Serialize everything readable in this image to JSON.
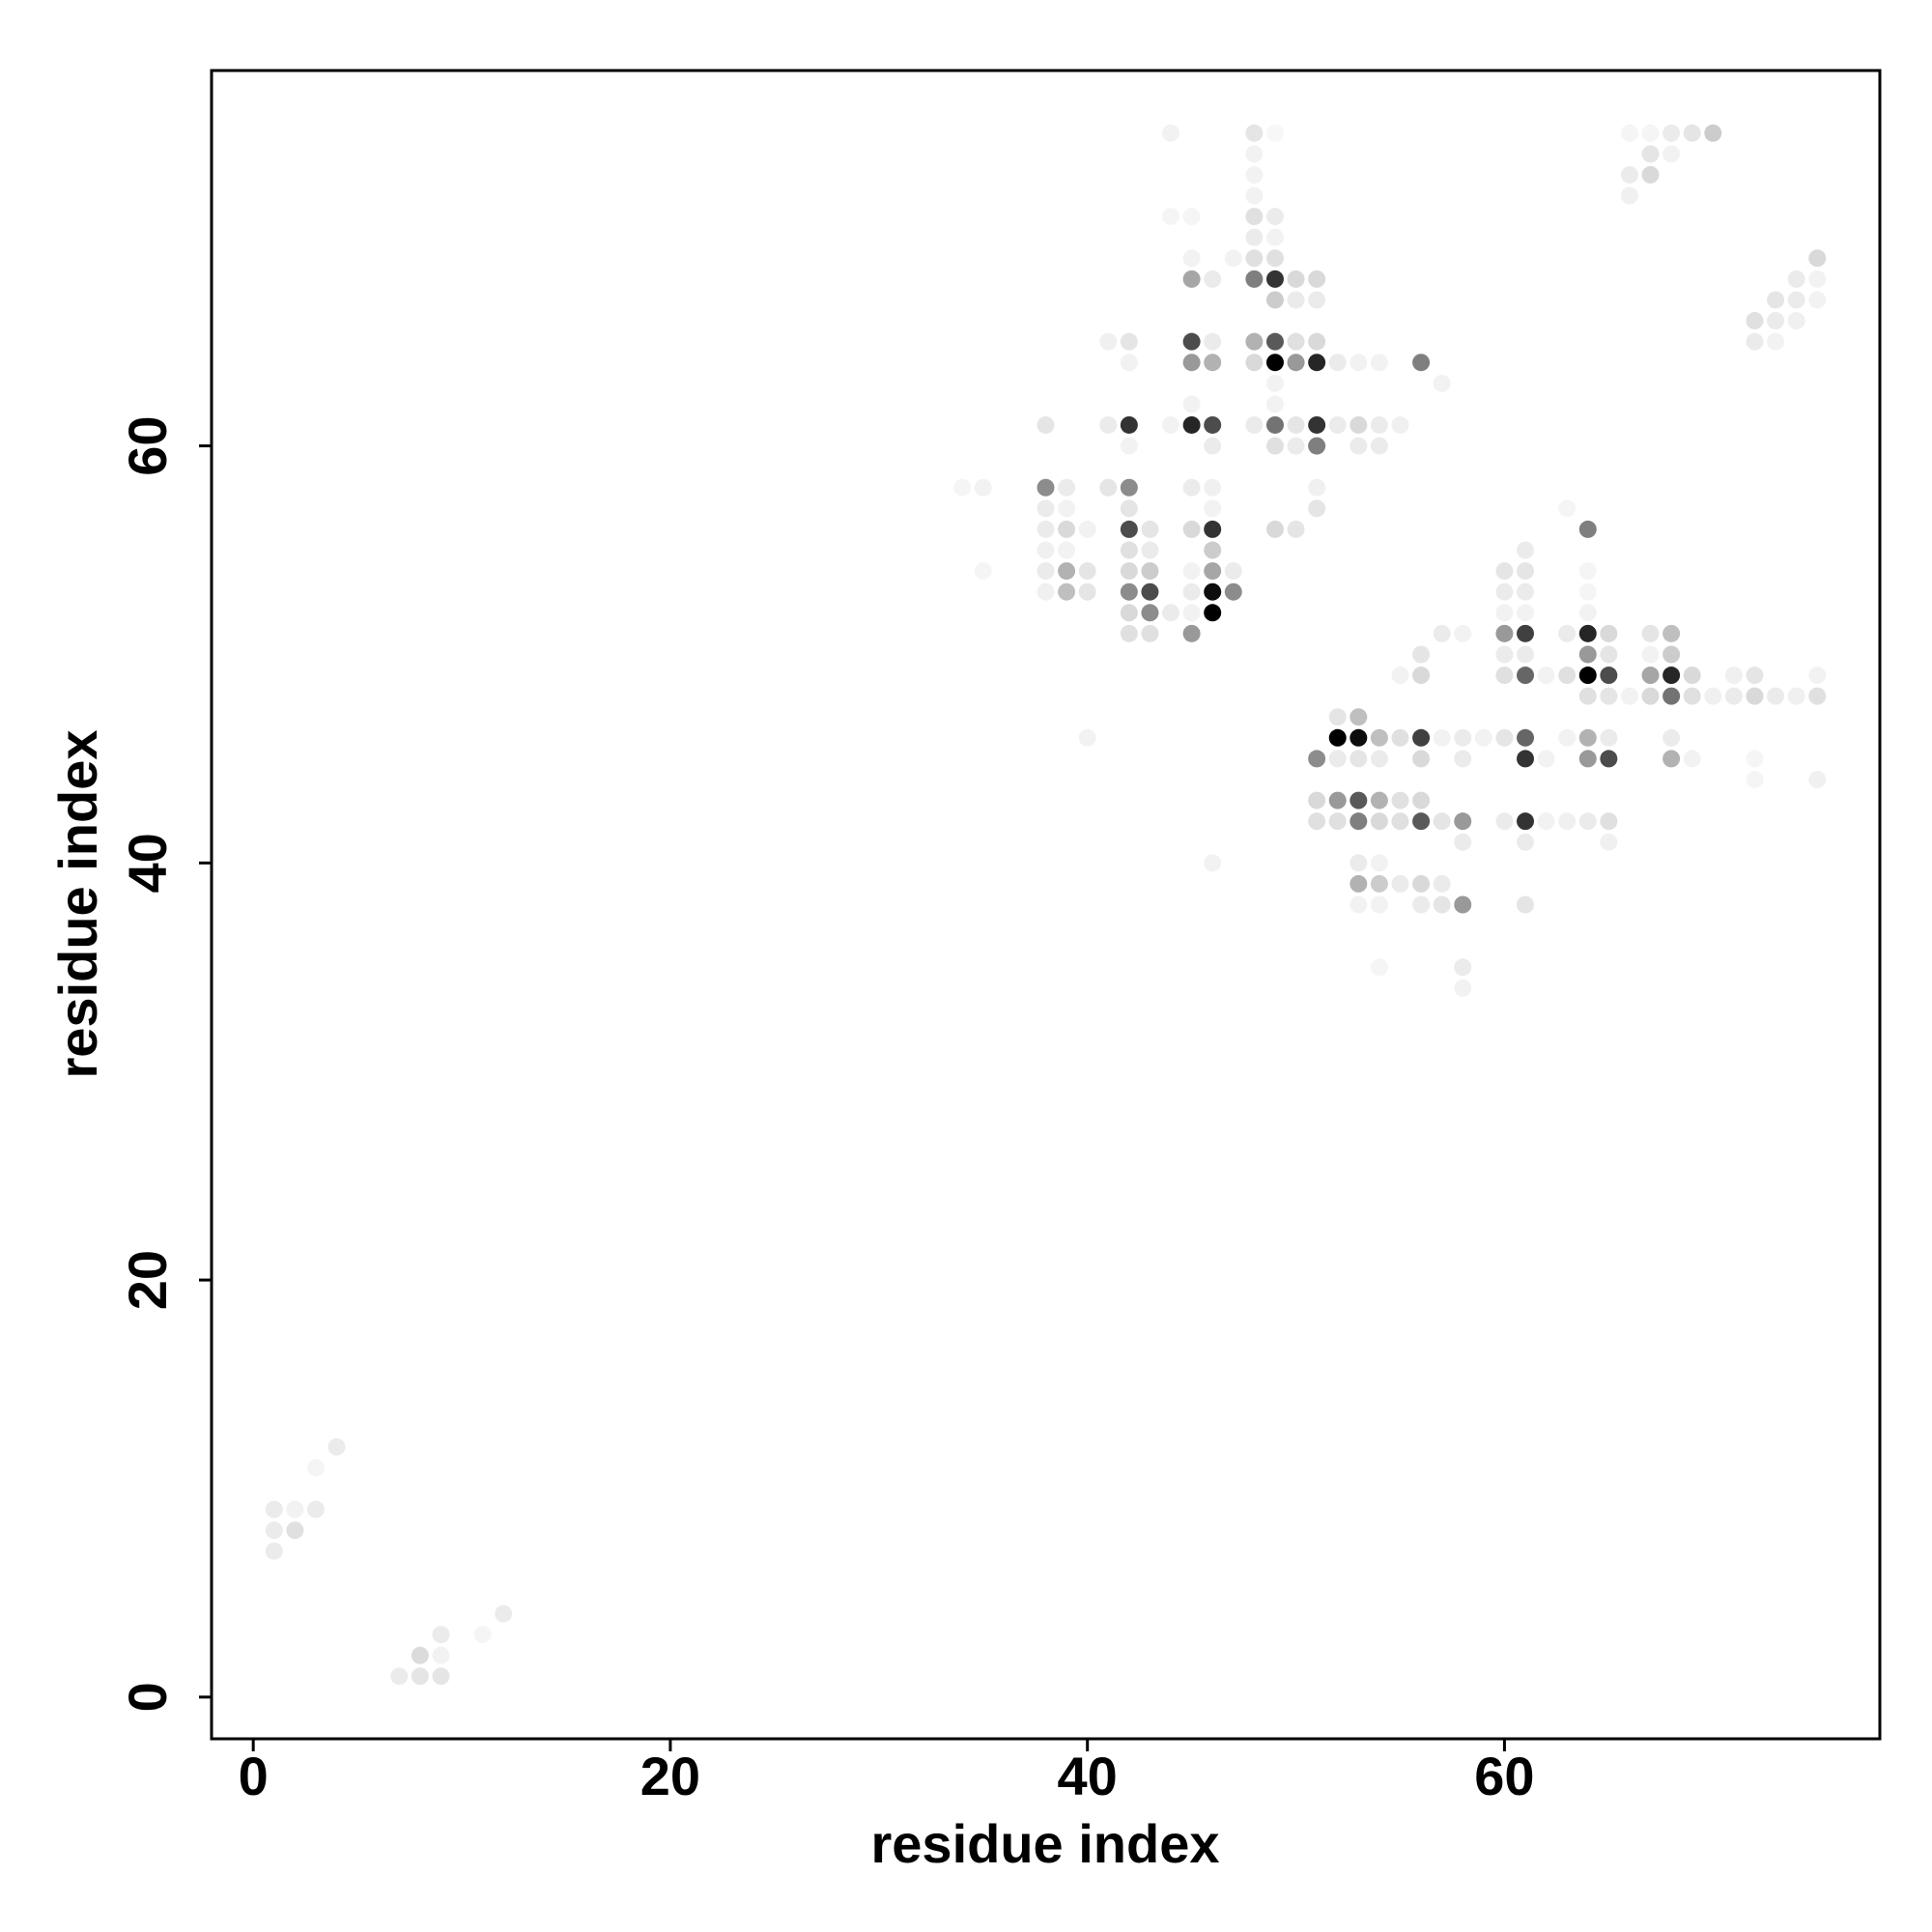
{
  "chart_data": {
    "type": "scatter",
    "x_label": "residue index",
    "y_label": "residue index",
    "xlim": [
      -2,
      78
    ],
    "ylim": [
      -2,
      78
    ],
    "xticks": [
      0,
      20,
      40,
      60
    ],
    "yticks": [
      0,
      20,
      40,
      60
    ],
    "grid": false,
    "color": "#000000",
    "x": [
      1,
      1,
      1,
      2,
      2,
      3,
      3,
      4,
      7,
      8,
      8,
      9,
      9,
      9,
      11,
      12,
      44,
      48,
      49,
      48,
      48,
      48,
      48,
      49,
      48,
      49,
      44,
      45,
      48,
      49,
      50,
      51,
      47,
      48,
      49,
      45,
      46,
      45,
      49,
      50,
      51,
      41,
      42,
      45,
      46,
      48,
      49,
      50,
      51,
      42,
      45,
      46,
      48,
      49,
      50,
      51,
      52,
      53,
      54,
      56,
      57,
      49,
      45,
      49,
      38,
      41,
      42,
      44,
      45,
      46,
      48,
      49,
      50,
      51,
      52,
      53,
      54,
      55,
      42,
      46,
      49,
      50,
      51,
      53,
      54,
      34,
      35,
      38,
      39,
      41,
      42,
      45,
      46,
      51,
      38,
      39,
      42,
      46,
      51,
      49,
      50,
      38,
      39,
      40,
      42,
      43,
      45,
      46,
      38,
      39,
      42,
      43,
      46,
      38,
      39,
      40,
      42,
      43,
      45,
      46,
      47,
      35,
      38,
      39,
      40,
      42,
      43,
      45,
      46,
      47,
      42,
      43,
      44,
      45,
      46,
      42,
      43,
      45,
      40,
      46,
      52,
      53,
      52,
      53,
      54,
      55,
      56,
      57,
      58,
      51,
      52,
      53,
      54,
      56,
      58,
      51,
      52,
      53,
      54,
      55,
      56,
      51,
      52,
      53,
      54,
      55,
      56,
      57,
      58,
      58,
      53,
      54,
      53,
      54,
      55,
      56,
      57,
      53,
      54,
      56,
      57,
      58,
      54,
      58,
      58,
      56,
      56,
      55,
      57,
      58,
      60,
      61,
      60,
      61,
      61,
      60,
      61,
      60,
      61,
      60,
      61,
      60,
      61,
      62,
      59,
      60,
      61,
      61,
      62,
      60,
      61,
      62,
      61,
      61,
      63,
      64,
      64,
      64,
      64,
      63,
      64,
      65,
      64,
      65,
      63,
      64,
      65,
      64,
      65,
      63,
      64,
      65,
      64,
      65,
      63,
      64,
      65,
      65,
      67,
      68,
      67,
      68,
      67,
      68,
      69,
      66,
      67,
      68,
      69,
      70,
      71,
      72,
      73,
      74,
      75,
      71,
      72,
      68,
      68,
      69,
      72,
      72,
      75,
      75,
      66,
      67,
      66,
      67,
      68,
      68,
      69,
      70,
      66,
      67,
      72,
      73,
      72,
      73,
      74,
      73,
      74,
      75,
      74,
      75,
      75
    ],
    "y": [
      9,
      8,
      7,
      9,
      8,
      9,
      11,
      12,
      1,
      1,
      2,
      1,
      2,
      3,
      3,
      4,
      75,
      75,
      75,
      74,
      73,
      72,
      71,
      71,
      70,
      70,
      71,
      71,
      68,
      68,
      68,
      68,
      69,
      69,
      69,
      68,
      68,
      69,
      67,
      67,
      67,
      65,
      65,
      65,
      65,
      65,
      65,
      65,
      65,
      64,
      64,
      64,
      64,
      64,
      64,
      64,
      64,
      64,
      64,
      64,
      63,
      63,
      62,
      62,
      61,
      61,
      61,
      61,
      61,
      61,
      61,
      61,
      61,
      61,
      61,
      61,
      61,
      61,
      60,
      60,
      60,
      60,
      60,
      60,
      60,
      58,
      58,
      58,
      58,
      58,
      58,
      58,
      58,
      58,
      57,
      57,
      57,
      57,
      57,
      56,
      56,
      56,
      56,
      56,
      56,
      56,
      56,
      56,
      55,
      55,
      55,
      55,
      55,
      54,
      54,
      54,
      54,
      54,
      54,
      54,
      54,
      54,
      53,
      53,
      53,
      53,
      53,
      53,
      53,
      53,
      52,
      52,
      52,
      52,
      52,
      51,
      51,
      51,
      46,
      40,
      47,
      47,
      46,
      46,
      46,
      46,
      46,
      46,
      46,
      45,
      45,
      45,
      45,
      45,
      45,
      43,
      43,
      43,
      43,
      43,
      43,
      42,
      42,
      42,
      42,
      42,
      42,
      42,
      42,
      41,
      40,
      40,
      39,
      39,
      39,
      39,
      39,
      38,
      38,
      38,
      38,
      38,
      35,
      35,
      34,
      50,
      49,
      49,
      51,
      51,
      54,
      55,
      53,
      54,
      53,
      52,
      52,
      51,
      51,
      50,
      50,
      49,
      49,
      49,
      46,
      46,
      46,
      45,
      45,
      42,
      42,
      42,
      41,
      38,
      57,
      56,
      54,
      53,
      52,
      51,
      51,
      51,
      50,
      50,
      49,
      49,
      49,
      48,
      48,
      46,
      46,
      46,
      45,
      45,
      42,
      42,
      42,
      41,
      51,
      51,
      50,
      50,
      49,
      49,
      49,
      48,
      48,
      48,
      48,
      48,
      48,
      48,
      48,
      48,
      48,
      49,
      49,
      46,
      45,
      45,
      45,
      44,
      44,
      49,
      73,
      73,
      72,
      74,
      74,
      75,
      75,
      75,
      75,
      75,
      65,
      65,
      66,
      66,
      66,
      67,
      67,
      67,
      68,
      68,
      69
    ],
    "weight": [
      0.08,
      0.08,
      0.08,
      0.05,
      0.12,
      0.08,
      0.04,
      0.08,
      0.08,
      0.1,
      0.14,
      0.1,
      0.05,
      0.08,
      0.04,
      0.08,
      0.05,
      0.1,
      0.03,
      0.05,
      0.05,
      0.05,
      0.12,
      0.08,
      0.08,
      0.05,
      0.04,
      0.04,
      0.5,
      0.8,
      0.15,
      0.15,
      0.05,
      0.12,
      0.12,
      0.35,
      0.08,
      0.05,
      0.2,
      0.08,
      0.08,
      0.06,
      0.1,
      0.7,
      0.08,
      0.3,
      0.65,
      0.12,
      0.15,
      0.05,
      0.4,
      0.3,
      0.15,
      1,
      0.4,
      0.85,
      0.08,
      0.05,
      0.05,
      0.5,
      0.05,
      0.05,
      0.05,
      0.05,
      0.1,
      0.08,
      0.8,
      0.05,
      0.85,
      0.7,
      0.08,
      0.55,
      0.1,
      0.8,
      0.08,
      0.15,
      0.08,
      0.06,
      0.05,
      0.08,
      0.12,
      0.08,
      0.5,
      0.08,
      0.08,
      0.04,
      0.05,
      0.45,
      0.08,
      0.1,
      0.45,
      0.08,
      0.06,
      0.06,
      0.08,
      0.05,
      0.1,
      0.05,
      0.1,
      0.15,
      0.1,
      0.08,
      0.15,
      0.05,
      0.7,
      0.1,
      0.15,
      0.8,
      0.06,
      0.05,
      0.12,
      0.08,
      0.2,
      0.08,
      0.3,
      0.1,
      0.15,
      0.2,
      0.05,
      0.35,
      0.08,
      0.04,
      0.06,
      0.25,
      0.1,
      0.45,
      0.7,
      0.08,
      0.95,
      0.45,
      0.15,
      0.45,
      0.08,
      0.05,
      1,
      0.12,
      0.12,
      0.4,
      0.05,
      0.05,
      0.1,
      0.25,
      1,
      0.95,
      0.25,
      0.12,
      0.75,
      0.05,
      0.08,
      0.45,
      0.08,
      0.1,
      0.08,
      0.15,
      0.08,
      0.15,
      0.4,
      0.65,
      0.3,
      0.12,
      0.15,
      0.12,
      0.12,
      0.5,
      0.15,
      0.12,
      0.65,
      0.1,
      0.4,
      0.08,
      0.08,
      0.05,
      0.3,
      0.2,
      0.08,
      0.15,
      0.08,
      0.05,
      0.05,
      0.08,
      0.1,
      0.4,
      0.04,
      0.08,
      0.05,
      0.1,
      0.15,
      0.05,
      0.08,
      0.05,
      0.1,
      0.08,
      0.08,
      0.1,
      0.08,
      0.05,
      0.05,
      0.4,
      0.75,
      0.08,
      0.08,
      0.12,
      0.6,
      0.05,
      0.05,
      0.1,
      0.6,
      0.8,
      0.05,
      0.08,
      0.8,
      0.05,
      0.08,
      0.1,
      0.04,
      0.5,
      0.04,
      0.04,
      0.05,
      0.08,
      0.85,
      0.15,
      0.4,
      0.1,
      0.12,
      1,
      0.7,
      0.12,
      0.1,
      0.05,
      0.3,
      0.08,
      0.4,
      0.7,
      0.06,
      0.08,
      0.12,
      0.06,
      0.1,
      0.25,
      0.05,
      0.2,
      0.35,
      0.85,
      0.15,
      0.05,
      0.15,
      0.55,
      0.12,
      0.06,
      0.08,
      0.15,
      0.08,
      0.06,
      0.12,
      0.06,
      0.1,
      0.08,
      0.3,
      0.05,
      0.04,
      0.04,
      0.06,
      0.05,
      0.08,
      0.15,
      0.06,
      0.1,
      0.05,
      0.08,
      0.1,
      0.2,
      0.04,
      0.04,
      0.08,
      0.05,
      0.12,
      0.08,
      0.06,
      0.1,
      0.08,
      0.05,
      0.08,
      0.05,
      0.15
    ]
  }
}
